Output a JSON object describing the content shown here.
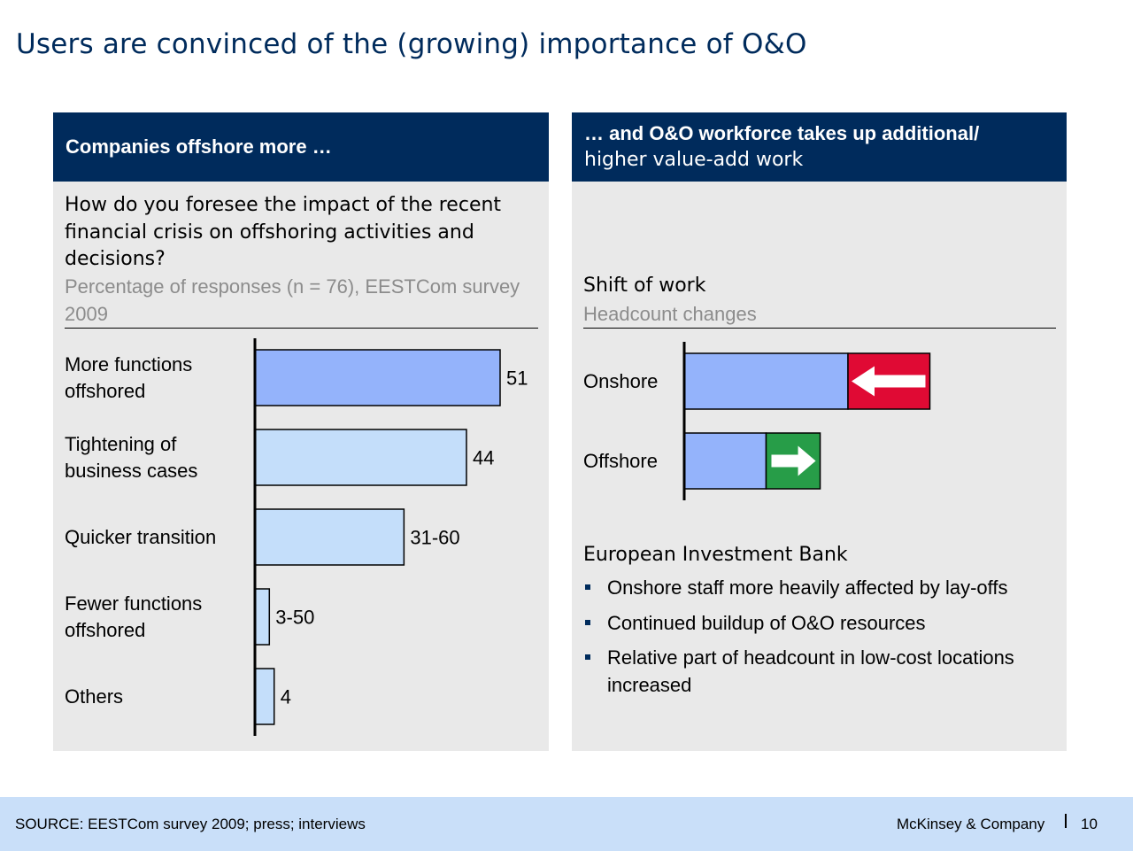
{
  "title": "Users are convinced of the (growing) importance of O&O",
  "left_panel": {
    "header": "Companies offshore more …",
    "question": "How do you foresee the impact of the recent financial crisis on offshoring activities and decisions?",
    "subtitle": "Percentage of responses (n = 76), EESTCom survey 2009"
  },
  "right_panel": {
    "header_bold": "… and O&O workforce takes up additional/",
    "header_regular": "higher value-add work",
    "chart_title": "Shift of work",
    "chart_subtitle": "Headcount changes",
    "section_title": "European Investment Bank",
    "bullets": [
      "Onshore staff more heavily affected by lay-offs",
      "Continued buildup of O&O resources",
      "Relative part of headcount in low-cost locations increased"
    ]
  },
  "chart_data": [
    {
      "type": "bar",
      "orientation": "horizontal",
      "title": "How do you foresee the impact of the recent financial crisis on offshoring activities and decisions?",
      "subtitle": "Percentage of responses (n = 76), EESTCom survey 2009",
      "categories": [
        "More functions offshored",
        "Tightening of business cases",
        "Quicker transition",
        "Fewer functions offshored",
        "Others"
      ],
      "values": [
        51,
        44,
        31,
        3,
        4
      ],
      "data_labels": [
        "51",
        "44",
        "31-60",
        "3-50",
        "4"
      ],
      "bar_colors": [
        "#94b3fb",
        "#c4defa",
        "#c4defa",
        "#c4defa",
        "#c4defa"
      ],
      "xlim": [
        0,
        51
      ],
      "grid": false,
      "legend": "none"
    },
    {
      "type": "bar",
      "orientation": "horizontal",
      "title": "Shift of work",
      "subtitle": "Headcount changes",
      "categories": [
        "Onshore",
        "Offshore"
      ],
      "series": [
        {
          "values": [
            100,
            50
          ],
          "color": "#94b3fb"
        },
        {
          "values": [
            50,
            33
          ],
          "direction": [
            "decrease",
            "increase"
          ],
          "colors": [
            "#e00a34",
            "#279d48"
          ]
        }
      ],
      "arrow_icons": [
        "arrow-left-icon",
        "arrow-right-icon"
      ],
      "grid": false,
      "legend": "none"
    }
  ],
  "footer": {
    "source": "SOURCE: EESTCom survey 2009; press; interviews",
    "brand": "McKinsey & Company",
    "page": "10"
  }
}
